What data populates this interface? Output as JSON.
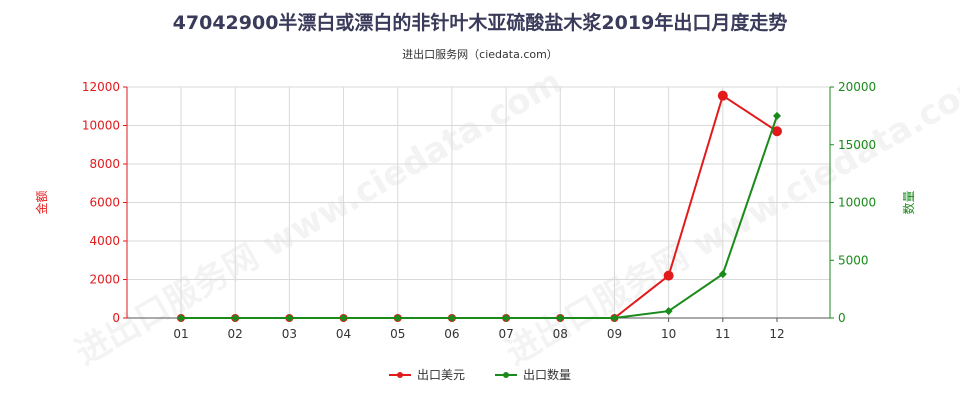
{
  "title": "47042900半漂白或漂白的非针叶木亚硫酸盐木浆2019年出口月度走势",
  "subtitle": "进出口服务网（ciedata.com）",
  "watermark": "进出口服务网 www.ciedata.com",
  "chart_data": {
    "type": "line",
    "categories": [
      "01",
      "02",
      "03",
      "04",
      "05",
      "06",
      "07",
      "08",
      "09",
      "10",
      "11",
      "12"
    ],
    "y_left": {
      "label": "金额",
      "ylim": [
        0,
        12000
      ],
      "ticks": [
        0,
        2000,
        4000,
        6000,
        8000,
        10000,
        12000
      ],
      "color": "#e31a1c"
    },
    "y_right": {
      "label": "数量",
      "ylim": [
        0,
        20000
      ],
      "ticks": [
        0,
        5000,
        10000,
        15000,
        20000
      ],
      "color": "#1a8a1a"
    },
    "series": [
      {
        "name": "出口美元",
        "axis": "left",
        "color": "#e31a1c",
        "values": [
          0,
          0,
          0,
          0,
          0,
          0,
          0,
          0,
          0,
          2200,
          11550,
          9700
        ]
      },
      {
        "name": "出口数量",
        "axis": "right",
        "color": "#1a8a1a",
        "values": [
          0,
          0,
          0,
          0,
          0,
          0,
          0,
          0,
          0,
          600,
          3800,
          17500
        ]
      }
    ],
    "grid": true,
    "legend_position": "bottom"
  }
}
